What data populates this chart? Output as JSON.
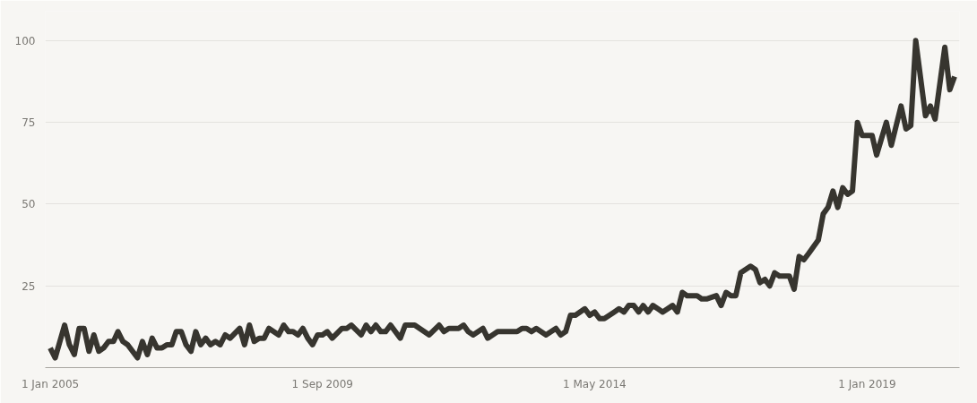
{
  "chart_data": {
    "type": "line",
    "color": "#37352f",
    "x": [
      "2005-01",
      "2005-02",
      "2005-04",
      "2005-05",
      "2005-06",
      "2005-07",
      "2005-08",
      "2005-09",
      "2005-10",
      "2005-11",
      "2005-12",
      "2006-01",
      "2006-02",
      "2006-03",
      "2006-04",
      "2006-05",
      "2006-07",
      "2006-08",
      "2006-09",
      "2006-10",
      "2006-11",
      "2006-12",
      "2007-01",
      "2007-02",
      "2007-03",
      "2007-04",
      "2007-05",
      "2007-06",
      "2007-07",
      "2007-08",
      "2007-09",
      "2007-10",
      "2007-11",
      "2007-12",
      "2008-01",
      "2008-02",
      "2008-04",
      "2008-05",
      "2008-06",
      "2008-07",
      "2008-08",
      "2008-09",
      "2008-10",
      "2008-12",
      "2009-01",
      "2009-02",
      "2009-03",
      "2009-04",
      "2009-05",
      "2009-06",
      "2009-07",
      "2009-08",
      "2009-09",
      "2009-10",
      "2009-11",
      "2010-01",
      "2010-02",
      "2010-03",
      "2010-05",
      "2010-06",
      "2010-07",
      "2010-08",
      "2010-09",
      "2010-10",
      "2010-11",
      "2010-12",
      "2011-01",
      "2011-02",
      "2011-04",
      "2011-07",
      "2011-09",
      "2011-10",
      "2011-11",
      "2012-01",
      "2012-02",
      "2012-03",
      "2012-04",
      "2012-06",
      "2012-07",
      "2012-09",
      "2013-01",
      "2013-02",
      "2013-03",
      "2013-04",
      "2013-05",
      "2013-07",
      "2013-09",
      "2013-10",
      "2013-11",
      "2013-12",
      "2014-01",
      "2014-03",
      "2014-04",
      "2014-05",
      "2014-06",
      "2014-07",
      "2014-09",
      "2014-10",
      "2014-11",
      "2014-12",
      "2015-01",
      "2015-02",
      "2015-03",
      "2015-04",
      "2015-05",
      "2015-06",
      "2015-07",
      "2015-09",
      "2015-10",
      "2015-11",
      "2015-12",
      "2016-02",
      "2016-03",
      "2016-04",
      "2016-06",
      "2016-07",
      "2016-08",
      "2016-09",
      "2016-10",
      "2016-11",
      "2017-01",
      "2017-02",
      "2017-03",
      "2017-04",
      "2017-05",
      "2017-06",
      "2017-07",
      "2017-09",
      "2017-10",
      "2017-11",
      "2017-12",
      "2018-01",
      "2018-03",
      "2018-04",
      "2018-05",
      "2018-06",
      "2018-07",
      "2018-08",
      "2018-09",
      "2018-10",
      "2018-11",
      "2018-12",
      "2019-02",
      "2019-03",
      "2019-05",
      "2019-06",
      "2019-08",
      "2019-09",
      "2019-10",
      "2019-11",
      "2020-01",
      "2020-02",
      "2020-03",
      "2020-05",
      "2020-06",
      "2020-07"
    ],
    "values": [
      6,
      3,
      13,
      7,
      4,
      12,
      12,
      5,
      10,
      5,
      6,
      8,
      8,
      11,
      8,
      7,
      3,
      8,
      4,
      9,
      6,
      6,
      7,
      7,
      11,
      11,
      7,
      5,
      11,
      7,
      9,
      7,
      8,
      7,
      10,
      9,
      12,
      7,
      13,
      8,
      9,
      9,
      12,
      10,
      13,
      11,
      11,
      10,
      12,
      9,
      7,
      10,
      10,
      11,
      9,
      12,
      12,
      13,
      10,
      13,
      11,
      13,
      11,
      11,
      13,
      11,
      9,
      13,
      13,
      10,
      13,
      11,
      12,
      12,
      13,
      11,
      10,
      12,
      9,
      11,
      11,
      12,
      12,
      11,
      12,
      10,
      12,
      10,
      11,
      16,
      16,
      18,
      16,
      17,
      15,
      15,
      17,
      18,
      17,
      19,
      19,
      17,
      19,
      17,
      19,
      18,
      17,
      19,
      17,
      23,
      22,
      22,
      21,
      21,
      22,
      19,
      23,
      22,
      22,
      29,
      31,
      30,
      26,
      27,
      25,
      29,
      28,
      28,
      24,
      34,
      33,
      35,
      39,
      47,
      49,
      54,
      49,
      55,
      53,
      54,
      75,
      71,
      71,
      65,
      75,
      68,
      80,
      73,
      74,
      100,
      77,
      80,
      76,
      98,
      85,
      89
    ],
    "xlim": [
      "2004-12",
      "2020-08"
    ],
    "ylim": [
      0,
      109
    ],
    "yticks": [
      25,
      50,
      75,
      100
    ],
    "xticks": [
      {
        "value": "2005-01-01",
        "label": "1 Jan 2005"
      },
      {
        "value": "2009-09-01",
        "label": "1 Sep 2009"
      },
      {
        "value": "2014-05-01",
        "label": "1 May 2014"
      },
      {
        "value": "2019-01-01",
        "label": "1 Jan 2019"
      }
    ],
    "grid": "y",
    "marker": "none",
    "line_style": "solid"
  }
}
